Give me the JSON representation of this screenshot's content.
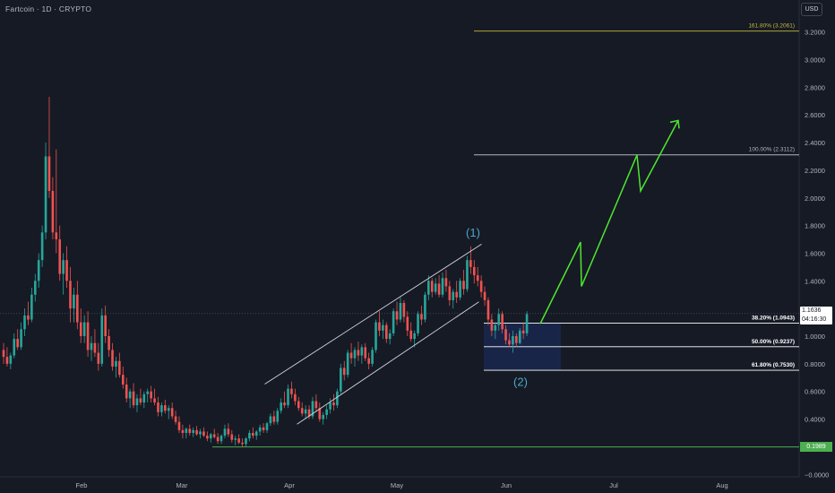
{
  "header": {
    "symbol": "Fartcoin · 1D · CRYPTO",
    "currency": "USD"
  },
  "chart_data": {
    "type": "candlestick",
    "title": "Fartcoin · 1D · CRYPTO",
    "ylim": [
      -0.05,
      3.35
    ],
    "yticks": [
      "3.2000",
      "3.0000",
      "2.8000",
      "2.6000",
      "2.4000",
      "2.2000",
      "2.0000",
      "1.8000",
      "1.6000",
      "1.4000",
      "1.2000",
      "1.0000",
      "0.8000",
      "0.6000",
      "0.4000",
      "0.2000",
      "−0.0000"
    ],
    "x_labels": [
      "Feb",
      "Mar",
      "Apr",
      "May",
      "Jun",
      "Jul",
      "Aug"
    ],
    "last_price": "1.1636",
    "countdown": "04:16:30",
    "candles": [
      [
        0.9,
        0.95,
        0.8,
        0.85
      ],
      [
        0.85,
        0.92,
        0.78,
        0.8
      ],
      [
        0.8,
        0.88,
        0.76,
        0.86
      ],
      [
        0.86,
        1.02,
        0.84,
        0.98
      ],
      [
        0.98,
        1.05,
        0.9,
        0.92
      ],
      [
        0.92,
        1.1,
        0.9,
        1.05
      ],
      [
        1.05,
        1.2,
        1.0,
        1.15
      ],
      [
        1.15,
        1.25,
        1.08,
        1.12
      ],
      [
        1.12,
        1.35,
        1.1,
        1.3
      ],
      [
        1.3,
        1.45,
        1.25,
        1.4
      ],
      [
        1.4,
        1.6,
        1.35,
        1.55
      ],
      [
        1.55,
        1.8,
        1.5,
        1.75
      ],
      [
        1.75,
        2.4,
        1.7,
        2.3
      ],
      [
        2.3,
        2.73,
        2.0,
        2.05
      ],
      [
        2.05,
        2.15,
        1.7,
        1.75
      ],
      [
        1.75,
        2.35,
        1.6,
        1.7
      ],
      [
        1.7,
        1.8,
        1.4,
        1.45
      ],
      [
        1.45,
        1.6,
        1.3,
        1.55
      ],
      [
        1.55,
        1.65,
        1.35,
        1.4
      ],
      [
        1.4,
        1.5,
        1.1,
        1.2
      ],
      [
        1.2,
        1.35,
        1.1,
        1.3
      ],
      [
        1.3,
        1.4,
        1.05,
        1.1
      ],
      [
        1.1,
        1.2,
        0.95,
        1.0
      ],
      [
        1.0,
        1.15,
        0.95,
        1.1
      ],
      [
        1.1,
        1.18,
        0.85,
        0.9
      ],
      [
        0.9,
        1.0,
        0.82,
        0.95
      ],
      [
        0.95,
        1.05,
        0.85,
        0.88
      ],
      [
        0.88,
        0.95,
        0.75,
        0.8
      ],
      [
        0.8,
        1.2,
        0.78,
        1.15
      ],
      [
        1.15,
        1.22,
        0.95,
        1.0
      ],
      [
        1.0,
        1.05,
        0.85,
        0.9
      ],
      [
        0.9,
        0.95,
        0.75,
        0.78
      ],
      [
        0.78,
        0.85,
        0.7,
        0.82
      ],
      [
        0.82,
        0.88,
        0.7,
        0.72
      ],
      [
        0.72,
        0.78,
        0.62,
        0.65
      ],
      [
        0.65,
        0.7,
        0.52,
        0.55
      ],
      [
        0.55,
        0.62,
        0.48,
        0.6
      ],
      [
        0.6,
        0.66,
        0.48,
        0.5
      ],
      [
        0.5,
        0.58,
        0.45,
        0.55
      ],
      [
        0.55,
        0.62,
        0.5,
        0.52
      ],
      [
        0.52,
        0.6,
        0.48,
        0.58
      ],
      [
        0.58,
        0.62,
        0.52,
        0.6
      ],
      [
        0.6,
        0.64,
        0.52,
        0.55
      ],
      [
        0.55,
        0.62,
        0.5,
        0.52
      ],
      [
        0.52,
        0.56,
        0.42,
        0.45
      ],
      [
        0.45,
        0.52,
        0.42,
        0.5
      ],
      [
        0.5,
        0.54,
        0.44,
        0.46
      ],
      [
        0.46,
        0.5,
        0.4,
        0.48
      ],
      [
        0.48,
        0.52,
        0.4,
        0.42
      ],
      [
        0.42,
        0.46,
        0.36,
        0.38
      ],
      [
        0.38,
        0.42,
        0.3,
        0.32
      ],
      [
        0.32,
        0.36,
        0.26,
        0.3
      ],
      [
        0.3,
        0.34,
        0.26,
        0.33
      ],
      [
        0.33,
        0.36,
        0.28,
        0.3
      ],
      [
        0.3,
        0.34,
        0.27,
        0.32
      ],
      [
        0.32,
        0.35,
        0.28,
        0.29
      ],
      [
        0.29,
        0.33,
        0.26,
        0.31
      ],
      [
        0.31,
        0.34,
        0.27,
        0.28
      ],
      [
        0.28,
        0.31,
        0.24,
        0.26
      ],
      [
        0.26,
        0.3,
        0.23,
        0.29
      ],
      [
        0.29,
        0.33,
        0.26,
        0.27
      ],
      [
        0.27,
        0.3,
        0.22,
        0.24
      ],
      [
        0.24,
        0.29,
        0.22,
        0.28
      ],
      [
        0.28,
        0.36,
        0.26,
        0.33
      ],
      [
        0.33,
        0.37,
        0.27,
        0.29
      ],
      [
        0.29,
        0.32,
        0.23,
        0.25
      ],
      [
        0.25,
        0.28,
        0.21,
        0.26
      ],
      [
        0.26,
        0.29,
        0.22,
        0.23
      ],
      [
        0.23,
        0.26,
        0.2,
        0.22
      ],
      [
        0.22,
        0.27,
        0.2,
        0.26
      ],
      [
        0.26,
        0.32,
        0.24,
        0.3
      ],
      [
        0.3,
        0.34,
        0.26,
        0.28
      ],
      [
        0.28,
        0.32,
        0.25,
        0.31
      ],
      [
        0.31,
        0.36,
        0.28,
        0.34
      ],
      [
        0.34,
        0.37,
        0.3,
        0.32
      ],
      [
        0.32,
        0.38,
        0.3,
        0.37
      ],
      [
        0.37,
        0.44,
        0.35,
        0.42
      ],
      [
        0.42,
        0.46,
        0.36,
        0.38
      ],
      [
        0.38,
        0.48,
        0.36,
        0.46
      ],
      [
        0.46,
        0.55,
        0.44,
        0.52
      ],
      [
        0.52,
        0.6,
        0.48,
        0.5
      ],
      [
        0.5,
        0.65,
        0.48,
        0.62
      ],
      [
        0.62,
        0.67,
        0.55,
        0.58
      ],
      [
        0.58,
        0.62,
        0.5,
        0.53
      ],
      [
        0.53,
        0.56,
        0.46,
        0.48
      ],
      [
        0.48,
        0.52,
        0.42,
        0.44
      ],
      [
        0.44,
        0.5,
        0.4,
        0.47
      ],
      [
        0.47,
        0.5,
        0.4,
        0.42
      ],
      [
        0.42,
        0.56,
        0.4,
        0.53
      ],
      [
        0.53,
        0.58,
        0.45,
        0.48
      ],
      [
        0.48,
        0.52,
        0.38,
        0.4
      ],
      [
        0.4,
        0.45,
        0.36,
        0.43
      ],
      [
        0.43,
        0.5,
        0.4,
        0.47
      ],
      [
        0.47,
        0.55,
        0.44,
        0.52
      ],
      [
        0.52,
        0.58,
        0.46,
        0.5
      ],
      [
        0.5,
        0.62,
        0.48,
        0.6
      ],
      [
        0.6,
        0.8,
        0.58,
        0.77
      ],
      [
        0.77,
        0.82,
        0.68,
        0.72
      ],
      [
        0.72,
        0.9,
        0.7,
        0.88
      ],
      [
        0.88,
        0.95,
        0.8,
        0.84
      ],
      [
        0.84,
        0.92,
        0.78,
        0.9
      ],
      [
        0.9,
        0.96,
        0.82,
        0.86
      ],
      [
        0.86,
        0.94,
        0.8,
        0.92
      ],
      [
        0.92,
        0.95,
        0.82,
        0.84
      ],
      [
        0.84,
        0.88,
        0.76,
        0.8
      ],
      [
        0.8,
        0.92,
        0.78,
        0.9
      ],
      [
        0.9,
        1.12,
        0.88,
        1.1
      ],
      [
        1.1,
        1.18,
        1.0,
        1.04
      ],
      [
        1.04,
        1.12,
        0.98,
        1.08
      ],
      [
        1.08,
        1.1,
        0.95,
        0.98
      ],
      [
        0.98,
        1.05,
        0.94,
        1.02
      ],
      [
        1.02,
        1.2,
        1.0,
        1.18
      ],
      [
        1.18,
        1.25,
        1.08,
        1.12
      ],
      [
        1.12,
        1.28,
        1.1,
        1.24
      ],
      [
        1.24,
        1.26,
        1.1,
        1.14
      ],
      [
        1.14,
        1.18,
        1.0,
        1.04
      ],
      [
        1.04,
        1.1,
        0.96,
        0.98
      ],
      [
        0.98,
        1.04,
        0.92,
        1.02
      ],
      [
        1.02,
        1.18,
        1.0,
        1.16
      ],
      [
        1.16,
        1.22,
        1.08,
        1.12
      ],
      [
        1.12,
        1.32,
        1.1,
        1.3
      ],
      [
        1.3,
        1.44,
        1.26,
        1.4
      ],
      [
        1.4,
        1.42,
        1.28,
        1.32
      ],
      [
        1.32,
        1.42,
        1.3,
        1.38
      ],
      [
        1.38,
        1.44,
        1.28,
        1.3
      ],
      [
        1.3,
        1.46,
        1.28,
        1.42
      ],
      [
        1.42,
        1.48,
        1.32,
        1.36
      ],
      [
        1.36,
        1.4,
        1.22,
        1.26
      ],
      [
        1.26,
        1.34,
        1.2,
        1.32
      ],
      [
        1.32,
        1.4,
        1.24,
        1.28
      ],
      [
        1.28,
        1.42,
        1.26,
        1.4
      ],
      [
        1.4,
        1.48,
        1.3,
        1.34
      ],
      [
        1.34,
        1.58,
        1.32,
        1.55
      ],
      [
        1.55,
        1.65,
        1.45,
        1.5
      ],
      [
        1.5,
        1.55,
        1.38,
        1.44
      ],
      [
        1.44,
        1.5,
        1.36,
        1.4
      ],
      [
        1.4,
        1.44,
        1.28,
        1.32
      ],
      [
        1.32,
        1.36,
        1.22,
        1.26
      ],
      [
        1.26,
        1.28,
        1.08,
        1.12
      ],
      [
        1.12,
        1.16,
        1.0,
        1.04
      ],
      [
        1.04,
        1.1,
        0.98,
        1.08
      ],
      [
        1.08,
        1.2,
        1.04,
        1.16
      ],
      [
        1.16,
        1.18,
        1.02,
        1.05
      ],
      [
        1.05,
        1.08,
        0.94,
        0.97
      ],
      [
        0.97,
        1.02,
        0.92,
        0.94
      ],
      [
        0.94,
        1.04,
        0.88,
        1.0
      ],
      [
        1.0,
        1.02,
        0.92,
        0.95
      ],
      [
        0.95,
        1.06,
        0.94,
        1.04
      ],
      [
        1.04,
        1.1,
        0.98,
        1.02
      ],
      [
        1.02,
        1.18,
        1.0,
        1.16
      ]
    ],
    "channel": {
      "upper": [
        [
          295.5,
          0.653
        ],
        [
          537.5,
          1.665
        ]
      ],
      "lower": [
        [
          331.5,
          0.363
        ],
        [
          534.5,
          1.248
        ]
      ]
    },
    "fib_levels": [
      {
        "label": "161.80% (3.2061)",
        "value": 3.2061,
        "color": "#c4b937"
      },
      {
        "label": "100.00% (2.3112)",
        "value": 2.3112,
        "color": "#b2b5be"
      },
      {
        "label": "38.20% (1.0943)",
        "value": 1.0943,
        "color": "#ffffff"
      },
      {
        "label": "50.00% (0.9237)",
        "value": 0.9237,
        "color": "#ffffff"
      },
      {
        "label": "61.80% (0.7530)",
        "value": 0.753,
        "color": "#ffffff"
      }
    ],
    "fib_base": {
      "label": "0.1989",
      "value": 0.1989,
      "color": "#4caf50"
    },
    "wave_labels": [
      {
        "text": "(1)",
        "x": 528,
        "y": 1.72
      },
      {
        "text": "(2)",
        "x": 581,
        "y": 0.64
      }
    ],
    "projection_path": [
      [
        603,
        1.09
      ],
      [
        648,
        1.68
      ],
      [
        649,
        1.36
      ],
      [
        711,
        2.31
      ],
      [
        715,
        2.05
      ],
      [
        757,
        2.56
      ]
    ],
    "colors": {
      "up": "#26a69a",
      "down": "#ef5350",
      "projection": "#4ee62e",
      "wave_label": "#4aa8c9",
      "box": "#2962ff"
    }
  }
}
